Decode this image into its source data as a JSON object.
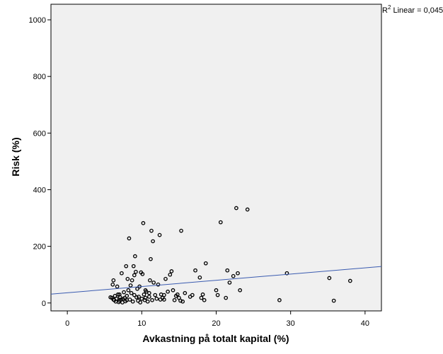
{
  "chart_data": {
    "type": "scatter",
    "title": "",
    "xlabel": "Avkastning på totalt kapital (%)",
    "ylabel": "Risk (%)",
    "xlim": [
      -2.2,
      42.2
    ],
    "ylim": [
      -28,
      1055
    ],
    "xticks": [
      0,
      10,
      20,
      30,
      40
    ],
    "yticks": [
      0,
      200,
      400,
      600,
      800,
      1000
    ],
    "grid": false,
    "colors": {
      "plot_background": "#f0f0f0",
      "points": "#000000",
      "fit_line": "#3a5bb0"
    },
    "fit_line": {
      "name": "Linear",
      "intercept": 36,
      "slope": 2.2
    },
    "annotation": {
      "r2_prefix": "R",
      "r2_sup": "2",
      "r2_suffix": " Linear = 0,045"
    },
    "points": [
      [
        6.0,
        18
      ],
      [
        6.1,
        65
      ],
      [
        6.2,
        80
      ],
      [
        6.3,
        10
      ],
      [
        6.4,
        25
      ],
      [
        6.5,
        5
      ],
      [
        6.6,
        15
      ],
      [
        6.7,
        58
      ],
      [
        6.8,
        30
      ],
      [
        6.9,
        3
      ],
      [
        7.0,
        8
      ],
      [
        7.1,
        20
      ],
      [
        7.2,
        12
      ],
      [
        7.3,
        105
      ],
      [
        7.4,
        2
      ],
      [
        7.5,
        14
      ],
      [
        7.6,
        38
      ],
      [
        7.7,
        18
      ],
      [
        7.8,
        6
      ],
      [
        7.9,
        130
      ],
      [
        8.0,
        25
      ],
      [
        8.1,
        85
      ],
      [
        8.2,
        45
      ],
      [
        8.3,
        228
      ],
      [
        8.4,
        12
      ],
      [
        8.5,
        62
      ],
      [
        8.6,
        35
      ],
      [
        8.7,
        80
      ],
      [
        8.8,
        5
      ],
      [
        8.9,
        130
      ],
      [
        9.0,
        98
      ],
      [
        9.1,
        165
      ],
      [
        9.2,
        110
      ],
      [
        9.3,
        20
      ],
      [
        9.4,
        50
      ],
      [
        9.5,
        8
      ],
      [
        9.6,
        22
      ],
      [
        9.7,
        58
      ],
      [
        9.8,
        2
      ],
      [
        9.9,
        108
      ],
      [
        10.0,
        15
      ],
      [
        10.1,
        102
      ],
      [
        10.2,
        282
      ],
      [
        10.3,
        30
      ],
      [
        10.4,
        10
      ],
      [
        10.5,
        18
      ],
      [
        10.6,
        40
      ],
      [
        10.8,
        5
      ],
      [
        11.0,
        22
      ],
      [
        11.1,
        80
      ],
      [
        11.2,
        155
      ],
      [
        11.3,
        255
      ],
      [
        11.4,
        10
      ],
      [
        11.5,
        218
      ],
      [
        11.6,
        72
      ],
      [
        11.8,
        28
      ],
      [
        12.0,
        15
      ],
      [
        12.2,
        65
      ],
      [
        12.4,
        240
      ],
      [
        12.6,
        30
      ],
      [
        12.8,
        18
      ],
      [
        13.0,
        12
      ],
      [
        13.2,
        85
      ],
      [
        13.5,
        40
      ],
      [
        13.8,
        100
      ],
      [
        14.0,
        112
      ],
      [
        14.2,
        45
      ],
      [
        14.4,
        10
      ],
      [
        14.6,
        25
      ],
      [
        14.8,
        30
      ],
      [
        15.0,
        18
      ],
      [
        15.2,
        8
      ],
      [
        15.3,
        255
      ],
      [
        15.5,
        5
      ],
      [
        15.8,
        35
      ],
      [
        16.5,
        22
      ],
      [
        16.8,
        28
      ],
      [
        17.2,
        115
      ],
      [
        17.8,
        90
      ],
      [
        18.0,
        18
      ],
      [
        18.2,
        30
      ],
      [
        18.4,
        10
      ],
      [
        18.6,
        140
      ],
      [
        20.0,
        45
      ],
      [
        20.2,
        28
      ],
      [
        20.6,
        285
      ],
      [
        21.3,
        18
      ],
      [
        21.5,
        115
      ],
      [
        21.8,
        72
      ],
      [
        22.3,
        95
      ],
      [
        22.7,
        335
      ],
      [
        22.9,
        105
      ],
      [
        23.2,
        45
      ],
      [
        24.2,
        330
      ],
      [
        28.5,
        10
      ],
      [
        29.5,
        105
      ],
      [
        35.2,
        88
      ],
      [
        35.8,
        8
      ],
      [
        38.0,
        78
      ],
      [
        5.8,
        20
      ],
      [
        6.2,
        12
      ],
      [
        7.0,
        30
      ],
      [
        8.0,
        10
      ],
      [
        9.0,
        28
      ],
      [
        10.5,
        45
      ],
      [
        11.0,
        35
      ],
      [
        12.5,
        12
      ],
      [
        13.0,
        28
      ]
    ]
  }
}
